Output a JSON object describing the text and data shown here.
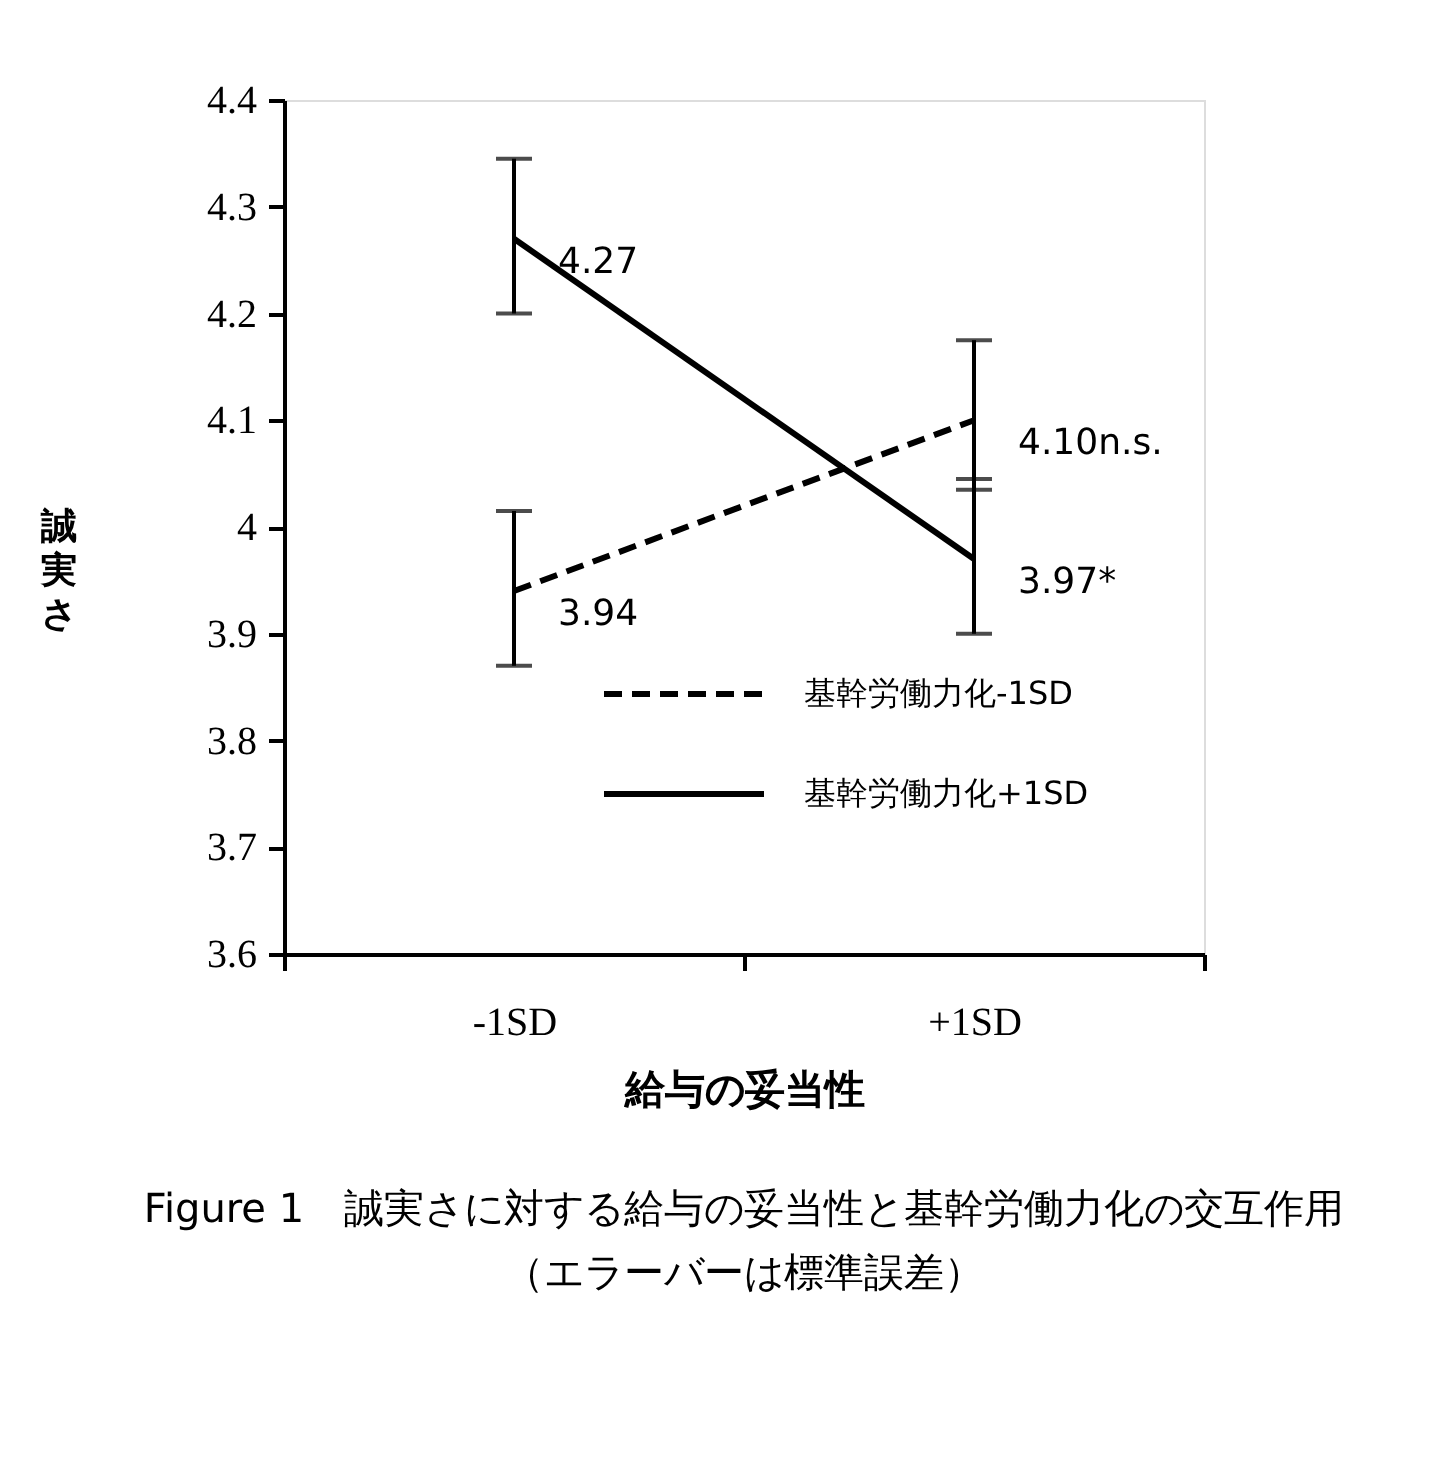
{
  "chart_data": {
    "type": "line",
    "xlabel": "給与の妥当性",
    "ylabel": "誠実さ",
    "categories": [
      "-1SD",
      "+1SD"
    ],
    "series": [
      {
        "name": "基幹労働力化-1SD",
        "color": "#000000",
        "line_style": "dashed",
        "values": [
          3.94,
          4.1
        ],
        "errors": [
          [
            3.87,
            4.015
          ],
          [
            4.035,
            4.175
          ]
        ],
        "value_labels": [
          "3.94",
          "4.10n.s."
        ]
      },
      {
        "name": "基幹労働力化+1SD",
        "color": "#000000",
        "line_style": "solid",
        "values": [
          4.27,
          3.97
        ],
        "errors": [
          [
            4.2,
            4.345
          ],
          [
            3.9,
            4.045
          ]
        ],
        "value_labels": [
          "4.27",
          "3.97*"
        ]
      }
    ],
    "ylim": [
      3.6,
      4.4
    ],
    "yticks": [
      3.6,
      3.7,
      3.8,
      3.9,
      {
        "value": 4,
        "label": "4"
      },
      4.1,
      4.2,
      4.3,
      4.4
    ],
    "grid": false,
    "legend": "bottom",
    "marker": "none",
    "annotations": [
      "Figure 1　誠実さに対する給与の妥当性と基幹労働力化の交互作用",
      "（エラーバーは標準誤差）"
    ]
  }
}
